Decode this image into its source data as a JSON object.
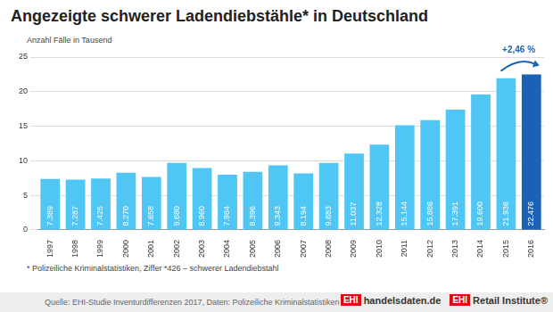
{
  "chart_data": {
    "type": "bar",
    "title": "Angezeigte schwerer Ladendiebstähle* in Deutschland",
    "y_label": "Anzahl Fälle in Tausend",
    "categories": [
      "1997",
      "1998",
      "1999",
      "2000",
      "2001",
      "2002",
      "2003",
      "2004",
      "2005",
      "2006",
      "2007",
      "2008",
      "2009",
      "2010",
      "2011",
      "2012",
      "2013",
      "2014",
      "2015",
      "2016"
    ],
    "values": [
      7.389,
      7.287,
      7.425,
      8.27,
      7.658,
      9.68,
      8.96,
      7.984,
      8.396,
      9.343,
      8.194,
      9.683,
      11.037,
      12.328,
      15.144,
      15.886,
      17.391,
      19.6,
      21.936,
      22.476
    ],
    "value_labels": [
      "7.389",
      "7.287",
      "7.425",
      "8.270",
      "7.658",
      "9.680",
      "8.960",
      "7.984",
      "8.396",
      "9.343",
      "8.194",
      "9.683",
      "11.037",
      "12.328",
      "15.144",
      "15.886",
      "17.391",
      "19.600",
      "21.936",
      "22.476"
    ],
    "colors": [
      "#4fc6f3",
      "#4fc6f3",
      "#4fc6f3",
      "#4fc6f3",
      "#4fc6f3",
      "#4fc6f3",
      "#4fc6f3",
      "#4fc6f3",
      "#4fc6f3",
      "#4fc6f3",
      "#4fc6f3",
      "#4fc6f3",
      "#4fc6f3",
      "#4fc6f3",
      "#4fc6f3",
      "#4fc6f3",
      "#4fc6f3",
      "#4fc6f3",
      "#4fc6f3",
      "#1a62b5"
    ],
    "ylim": [
      0,
      25
    ],
    "yticks": [
      0,
      5,
      10,
      15,
      20,
      25
    ],
    "grid": true,
    "data_labels": true,
    "annotations": [
      "+2,46 %"
    ],
    "footnote": "* Polizeiliche Kriminalstatistiken, Ziffer *426 – schwerer Ladendiebstahl",
    "source": "Quelle: EHI-Studie Inventurdifferenzen 2017, Daten: Polizeiliche Kriminalstatistiken",
    "logos": [
      {
        "mark": "EHI",
        "text": "handelsdaten.de"
      },
      {
        "mark": "EHI",
        "text": "Retail Institute®"
      }
    ]
  }
}
